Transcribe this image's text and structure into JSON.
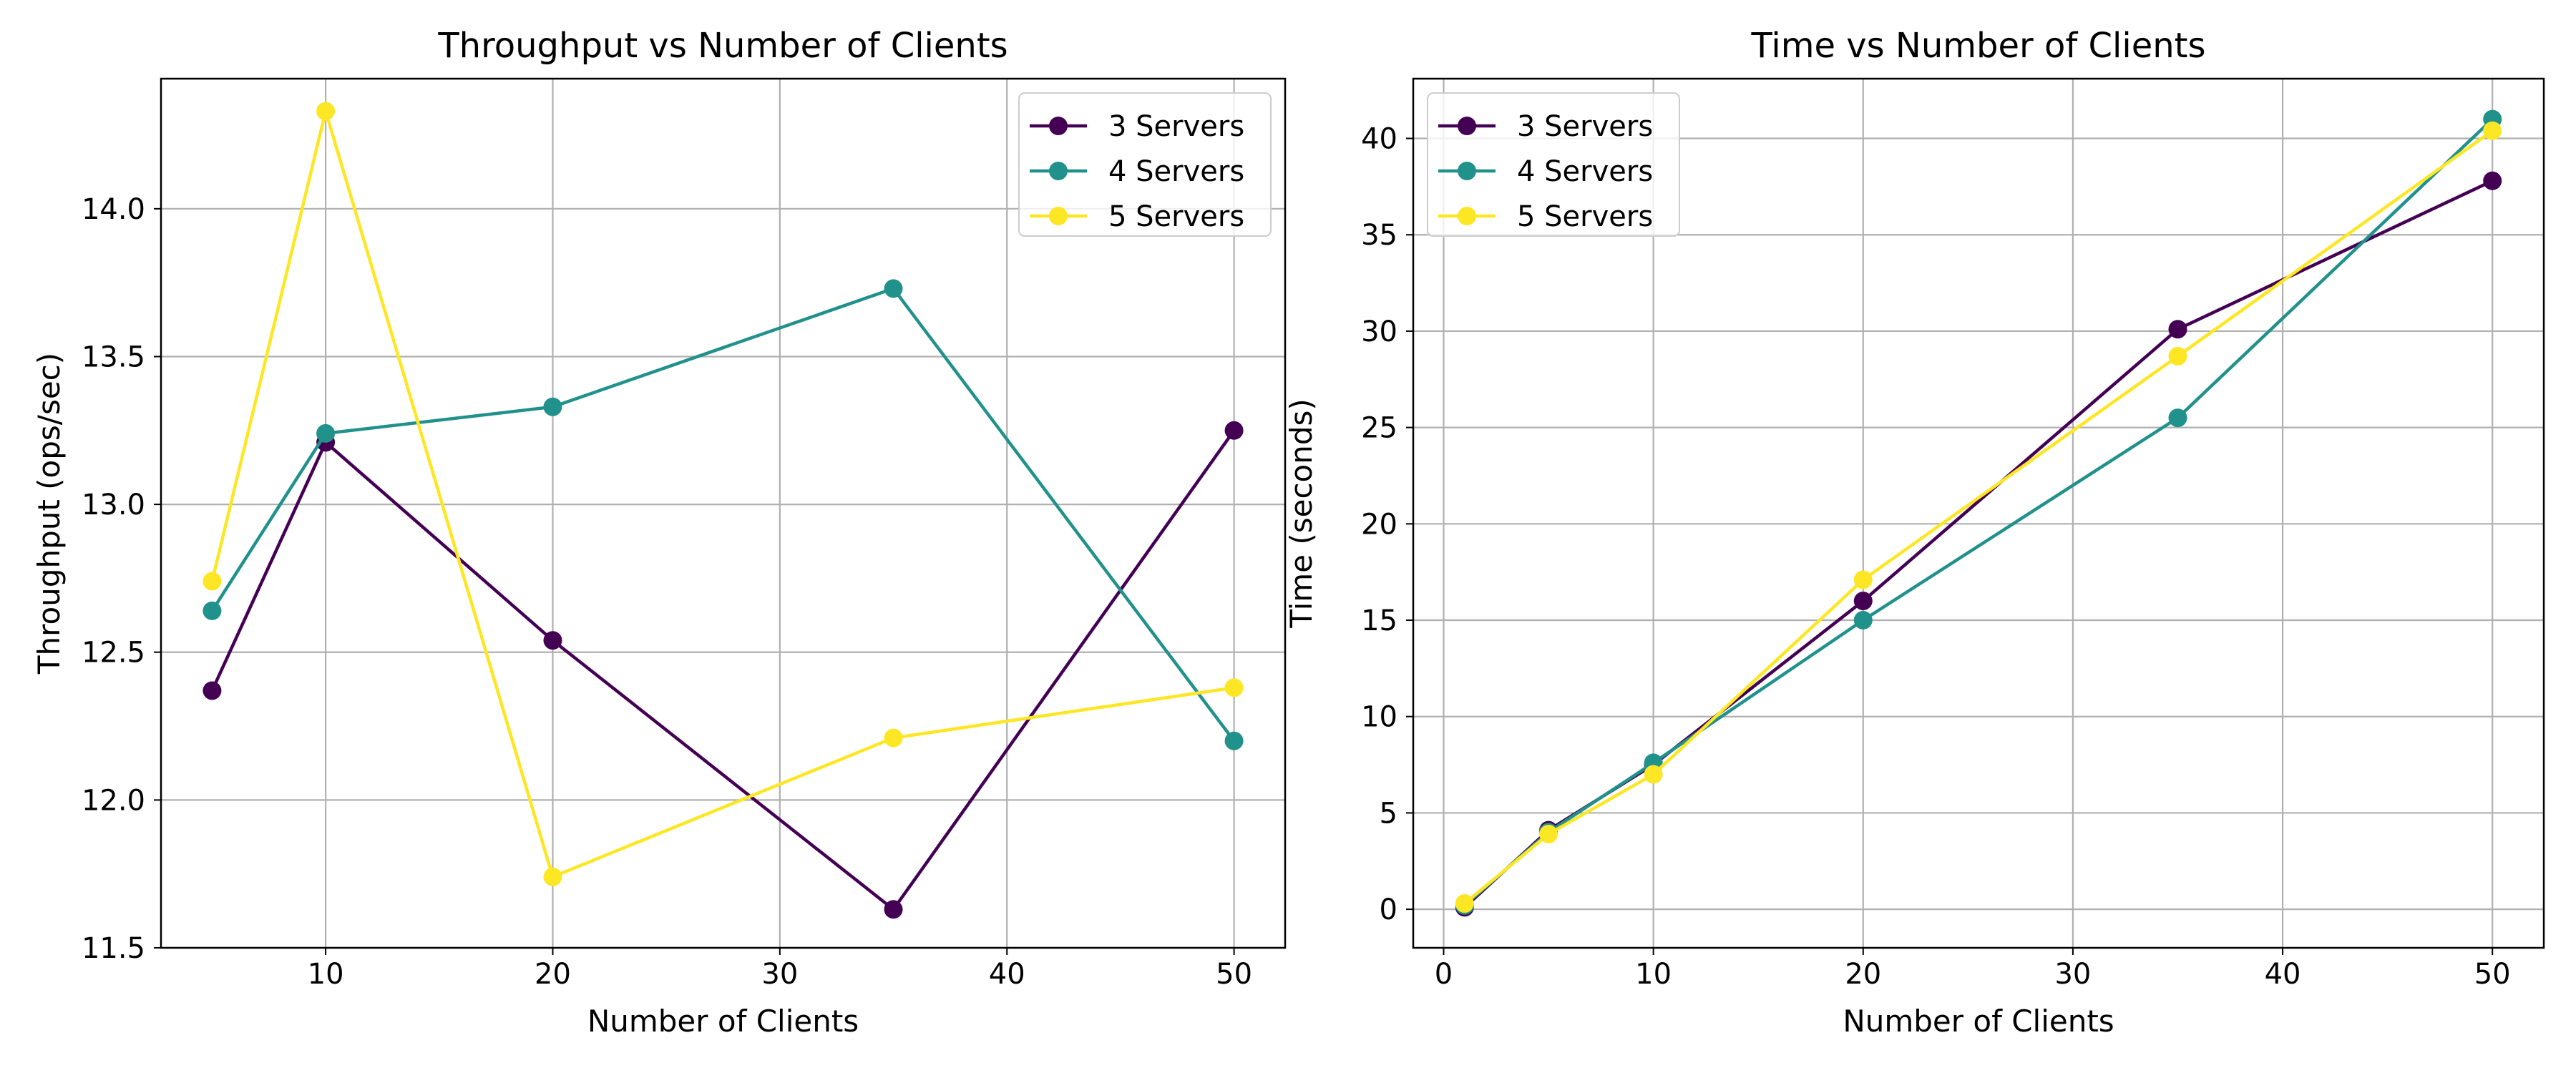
{
  "chart_data": [
    {
      "type": "line",
      "title": "Throughput vs Number of Clients",
      "xlabel": "Number of Clients",
      "ylabel": "Throughput (ops/sec)",
      "xlim": [
        2.75,
        52.25
      ],
      "ylim": [
        11.5,
        14.44
      ],
      "xticks": [
        10,
        20,
        30,
        40,
        50
      ],
      "yticks": [
        11.5,
        12.0,
        12.5,
        13.0,
        13.5,
        14.0
      ],
      "ytick_labels": [
        "11.5",
        "12.0",
        "12.5",
        "13.0",
        "13.5",
        "14.0"
      ],
      "xtick_labels": [
        "10",
        "20",
        "30",
        "40",
        "50"
      ],
      "grid": true,
      "legend_position": "upper right",
      "x": [
        5,
        10,
        20,
        35,
        50
      ],
      "series": [
        {
          "name": "3 Servers",
          "color": "#440154",
          "values": [
            12.37,
            13.21,
            12.54,
            11.63,
            13.25
          ]
        },
        {
          "name": "4 Servers",
          "color": "#21918c",
          "values": [
            12.64,
            13.24,
            13.33,
            13.73,
            12.2
          ]
        },
        {
          "name": "5 Servers",
          "color": "#fde725",
          "values": [
            12.74,
            14.33,
            11.74,
            12.21,
            12.38
          ]
        }
      ]
    },
    {
      "type": "line",
      "title": "Time vs Number of Clients",
      "xlabel": "Number of Clients",
      "ylabel": "Time (seconds)",
      "xlim": [
        -1.45,
        52.45
      ],
      "ylim": [
        -2.0,
        43.1
      ],
      "xticks": [
        0,
        10,
        20,
        30,
        40,
        50
      ],
      "yticks": [
        0,
        5,
        10,
        15,
        20,
        25,
        30,
        35,
        40
      ],
      "ytick_labels": [
        "0",
        "5",
        "10",
        "15",
        "20",
        "25",
        "30",
        "35",
        "40"
      ],
      "xtick_labels": [
        "0",
        "10",
        "20",
        "30",
        "40",
        "50"
      ],
      "grid": true,
      "legend_position": "upper left",
      "x": [
        1,
        5,
        10,
        20,
        35,
        50
      ],
      "series": [
        {
          "name": "3 Servers",
          "color": "#440154",
          "values": [
            0.1,
            4.1,
            7.5,
            16.0,
            30.1,
            37.8
          ]
        },
        {
          "name": "4 Servers",
          "color": "#21918c",
          "values": [
            0.2,
            4.0,
            7.6,
            15.0,
            25.5,
            41.0
          ]
        },
        {
          "name": "5 Servers",
          "color": "#fde725",
          "values": [
            0.3,
            3.9,
            7.0,
            17.1,
            28.7,
            40.4
          ]
        }
      ]
    }
  ]
}
